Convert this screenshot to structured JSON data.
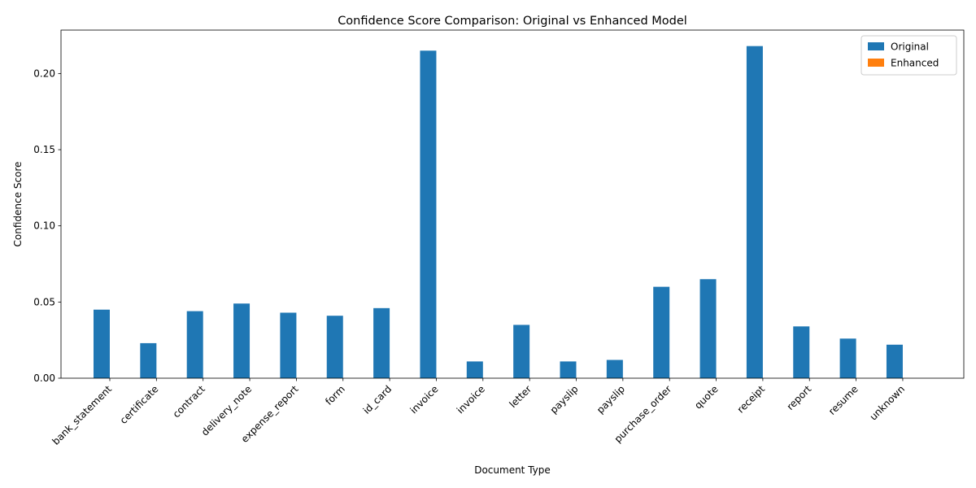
{
  "chart_data": {
    "type": "bar",
    "title": "Confidence Score Comparison: Original vs Enhanced Model",
    "xlabel": "Document Type",
    "ylabel": "Confidence Score",
    "ylim": [
      0,
      0.2285
    ],
    "yticks": [
      0.0,
      0.05,
      0.1,
      0.15,
      0.2
    ],
    "ytick_labels": [
      "0.00",
      "0.05",
      "0.10",
      "0.15",
      "0.20"
    ],
    "grid": false,
    "legend_position": "top-right",
    "categories": [
      "bank_statement",
      "certificate",
      "contract",
      "delivery_note",
      "expense_report",
      "form",
      "id_card",
      "invoice",
      "invoice",
      "letter",
      "payslip",
      "payslip",
      "purchase_order",
      "quote",
      "receipt",
      "report",
      "resume",
      "unknown"
    ],
    "series": [
      {
        "name": "Original",
        "color": "#1f77b4",
        "values": [
          0.045,
          0.023,
          0.044,
          0.049,
          0.043,
          0.041,
          0.046,
          0.215,
          0.011,
          0.035,
          0.011,
          0.012,
          0.06,
          0.065,
          0.218,
          0.034,
          0.026,
          0.022
        ]
      },
      {
        "name": "Enhanced",
        "color": "#ff7f0e",
        "values": [
          0,
          0,
          0,
          0,
          0,
          0,
          0,
          0,
          0,
          0,
          0,
          0,
          0,
          0,
          0,
          0,
          0,
          0
        ]
      }
    ]
  }
}
